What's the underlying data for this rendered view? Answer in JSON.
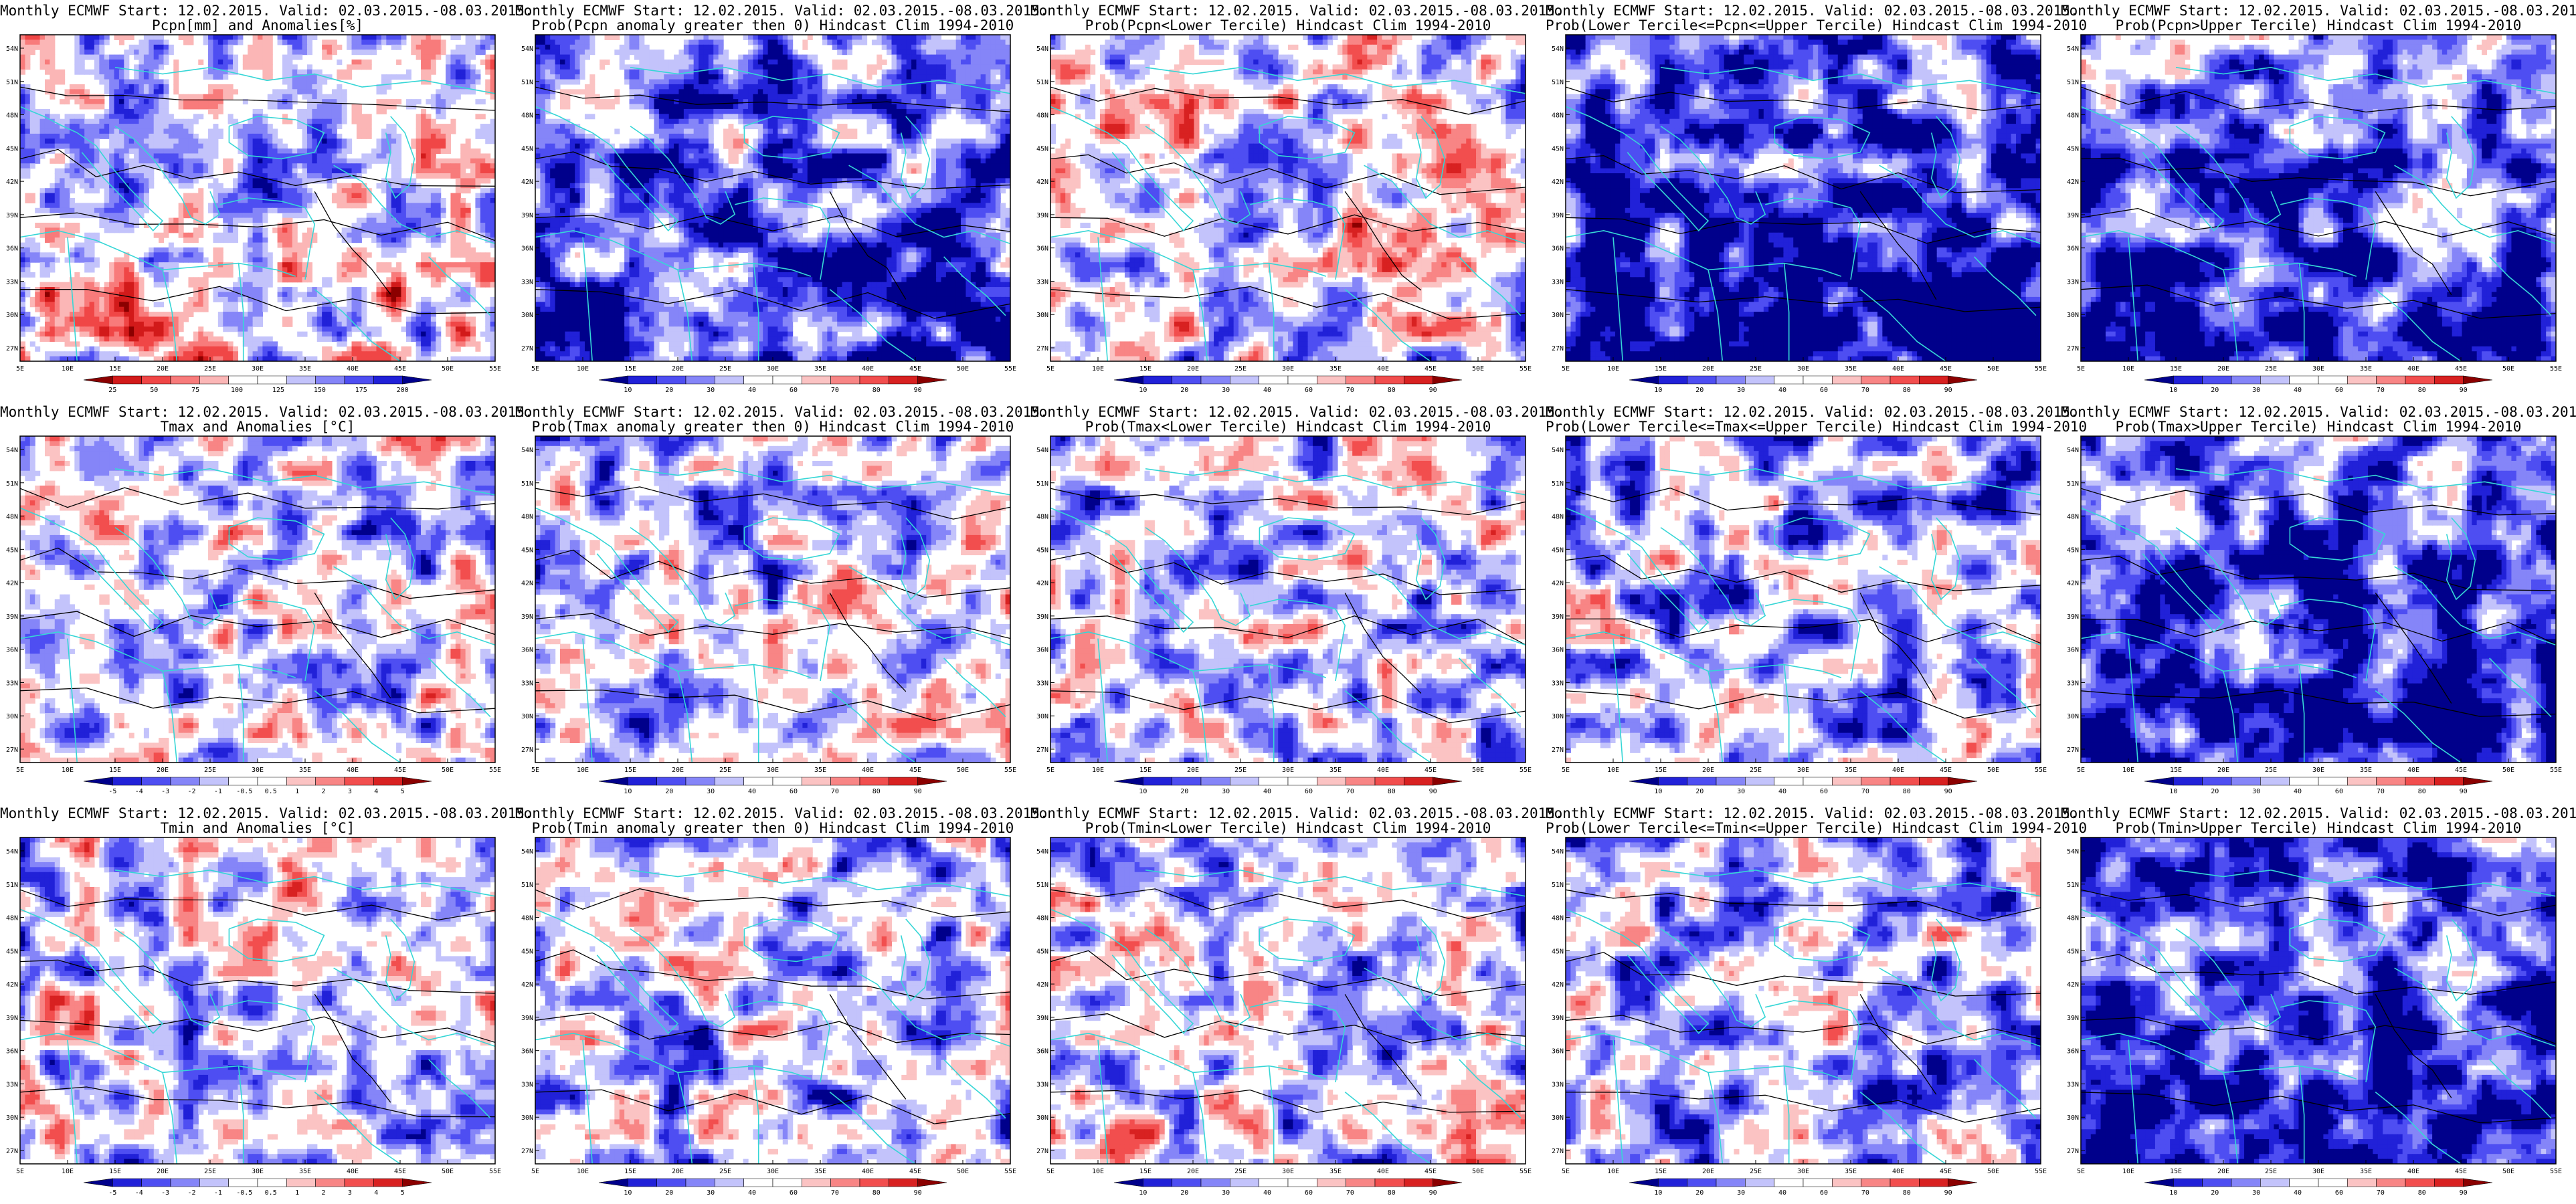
{
  "figure": {
    "panels": [
      {
        "row": 0,
        "col": 0,
        "title1": "Monthly ECMWF Start: 12.02.2015. Valid: 02.03.2015.-08.03.2015.",
        "title2": "Pcpn[mm] and Anomalies[%]",
        "colorbar": [
          "25",
          "50",
          "75",
          "100",
          "125",
          "150",
          "175",
          "200"
        ],
        "palette": "pcpn_anom",
        "seed": 11,
        "bias": 0.1
      },
      {
        "row": 0,
        "col": 1,
        "title1": "Monthly ECMWF Start: 12.02.2015. Valid: 02.03.2015.-08.03.2015.",
        "title2": "Prob(Pcpn anomaly greater then 0) Hindcast Clim 1994-2010",
        "colorbar": [
          "10",
          "20",
          "30",
          "40",
          "60",
          "70",
          "80",
          "90"
        ],
        "palette": "prob",
        "seed": 23,
        "bias": -0.35
      },
      {
        "row": 0,
        "col": 2,
        "title1": "Monthly ECMWF Start: 12.02.2015. Valid: 02.03.2015.-08.03.2015.",
        "title2": "Prob(Pcpn<Lower Tercile) Hindcast Clim 1994-2010",
        "colorbar": [
          "10",
          "20",
          "30",
          "40",
          "60",
          "70",
          "80",
          "90"
        ],
        "palette": "prob",
        "seed": 37,
        "bias": -0.05
      },
      {
        "row": 0,
        "col": 3,
        "title1": "Monthly ECMWF Start: 12.02.2015. Valid: 02.03.2015.-08.03.2015.",
        "title2": "Prob(Lower Tercile<=Pcpn<=Upper Tercile) Hindcast Clim 1994-2010",
        "colorbar": [
          "10",
          "20",
          "30",
          "40",
          "60",
          "70",
          "80",
          "90"
        ],
        "palette": "prob",
        "seed": 41,
        "bias": -0.55
      },
      {
        "row": 0,
        "col": 4,
        "title1": "Monthly ECMWF Start: 12.02.2015. Valid: 02.03.2015.-08.03.2015.",
        "title2": "Prob(Pcpn>Upper Tercile) Hindcast Clim 1994-2010",
        "colorbar": [
          "10",
          "20",
          "30",
          "40",
          "60",
          "70",
          "80",
          "90"
        ],
        "palette": "prob",
        "seed": 53,
        "bias": -0.4
      },
      {
        "row": 1,
        "col": 0,
        "title1": "Monthly ECMWF Start: 12.02.2015. Valid: 02.03.2015.-08.03.2015.",
        "title2": "Tmax and Anomalies [°C]",
        "colorbar": [
          "-5",
          "-4",
          "-3",
          "-2",
          "-1",
          "-0.5",
          "0.5",
          "1",
          "2",
          "3",
          "4",
          "5"
        ],
        "palette": "temp_anom",
        "seed": 61,
        "bias": -0.1
      },
      {
        "row": 1,
        "col": 1,
        "title1": "Monthly ECMWF Start: 12.02.2015. Valid: 02.03.2015.-08.03.2015.",
        "title2": "Prob(Tmax anomaly greater then 0) Hindcast Clim 1994-2010",
        "colorbar": [
          "10",
          "20",
          "30",
          "40",
          "60",
          "70",
          "80",
          "90"
        ],
        "palette": "prob",
        "seed": 71,
        "bias": -0.15
      },
      {
        "row": 1,
        "col": 2,
        "title1": "Monthly ECMWF Start: 12.02.2015. Valid: 02.03.2015.-08.03.2015.",
        "title2": "Prob(Tmax<Lower Tercile) Hindcast Clim 1994-2010",
        "colorbar": [
          "10",
          "20",
          "30",
          "40",
          "60",
          "70",
          "80",
          "90"
        ],
        "palette": "prob",
        "seed": 83,
        "bias": -0.2
      },
      {
        "row": 1,
        "col": 3,
        "title1": "Monthly ECMWF Start: 12.02.2015. Valid: 02.03.2015.-08.03.2015.",
        "title2": "Prob(Lower Tercile<=Tmax<=Upper Tercile) Hindcast Clim 1994-2010",
        "colorbar": [
          "10",
          "20",
          "30",
          "40",
          "60",
          "70",
          "80",
          "90"
        ],
        "palette": "prob",
        "seed": 97,
        "bias": -0.3
      },
      {
        "row": 1,
        "col": 4,
        "title1": "Monthly ECMWF Start: 12.02.2015. Valid: 02.03.2015.-08.03.2015.",
        "title2": "Prob(Tmax>Upper Tercile) Hindcast Clim 1994-2010",
        "colorbar": [
          "10",
          "20",
          "30",
          "40",
          "60",
          "70",
          "80",
          "90"
        ],
        "palette": "prob",
        "seed": 101,
        "bias": -0.45
      },
      {
        "row": 2,
        "col": 0,
        "title1": "Monthly ECMWF Start: 12.02.2015. Valid: 02.03.2015.-08.03.2015.",
        "title2": "Tmin and Anomalies [°C]",
        "colorbar": [
          "-5",
          "-4",
          "-3",
          "-2",
          "-1",
          "-0.5",
          "0.5",
          "1",
          "2",
          "3",
          "4",
          "5"
        ],
        "palette": "temp_anom",
        "seed": 113,
        "bias": -0.12
      },
      {
        "row": 2,
        "col": 1,
        "title1": "Monthly ECMWF Start: 12.02.2015. Valid: 02.03.2015.-08.03.2015.",
        "title2": "Prob(Tmin anomaly greater then 0) Hindcast Clim 1994-2010",
        "colorbar": [
          "10",
          "20",
          "30",
          "40",
          "60",
          "70",
          "80",
          "90"
        ],
        "palette": "prob",
        "seed": 127,
        "bias": -0.2
      },
      {
        "row": 2,
        "col": 2,
        "title1": "Monthly ECMWF Start: 12.02.2015. Valid: 02.03.2015.-08.03.2015.",
        "title2": "Prob(Tmin<Lower Tercile) Hindcast Clim 1994-2010",
        "colorbar": [
          "10",
          "20",
          "30",
          "40",
          "60",
          "70",
          "80",
          "90"
        ],
        "palette": "prob",
        "seed": 131,
        "bias": -0.1
      },
      {
        "row": 2,
        "col": 3,
        "title1": "Monthly ECMWF Start: 12.02.2015. Valid: 02.03.2015.-08.03.2015.",
        "title2": "Prob(Lower Tercile<=Tmin<=Upper Tercile) Hindcast Clim 1994-2010",
        "colorbar": [
          "10",
          "20",
          "30",
          "40",
          "60",
          "70",
          "80",
          "90"
        ],
        "palette": "prob",
        "seed": 139,
        "bias": -0.3
      },
      {
        "row": 2,
        "col": 4,
        "title1": "Monthly ECMWF Start: 12.02.2015. Valid: 02.03.2015.-08.03.2015.",
        "title2": "Prob(Tmin>Upper Tercile) Hindcast Clim 1994-2010",
        "colorbar": [
          "10",
          "20",
          "30",
          "40",
          "60",
          "70",
          "80",
          "90"
        ],
        "palette": "prob",
        "seed": 149,
        "bias": -0.5
      }
    ],
    "lat_labels": [
      "54N",
      "51N",
      "48N",
      "45N",
      "42N",
      "39N",
      "36N",
      "33N",
      "30N",
      "27N"
    ],
    "lon_labels": [
      "5E",
      "10E",
      "15E",
      "20E",
      "25E",
      "30E",
      "35E",
      "40E",
      "45E",
      "50E",
      "55E"
    ],
    "colors": {
      "coast": "#36d6d6",
      "contour": "#000000",
      "prob_palette": [
        "#00008b",
        "#2121d8",
        "#4e4ef2",
        "#8585f8",
        "#c3c3fb",
        "#ffffff",
        "#ffffff",
        "#fbc3c3",
        "#f88585",
        "#f24e4e",
        "#d82121",
        "#8b0000"
      ],
      "pcpn_palette": [
        "#8b0000",
        "#d21a1a",
        "#f04646",
        "#f87b7b",
        "#fbb6b6",
        "#ffffff",
        "#ffffff",
        "#c3c3fb",
        "#8585f8",
        "#4e4ef2",
        "#2121d8",
        "#00008b"
      ],
      "temp_palette": [
        "#00008b",
        "#2121d8",
        "#4e4ef2",
        "#8585f8",
        "#c3c3fb",
        "#ffffff",
        "#ffffff",
        "#fbc3c3",
        "#f88585",
        "#f24e4e",
        "#d82121",
        "#8b0000"
      ]
    }
  }
}
